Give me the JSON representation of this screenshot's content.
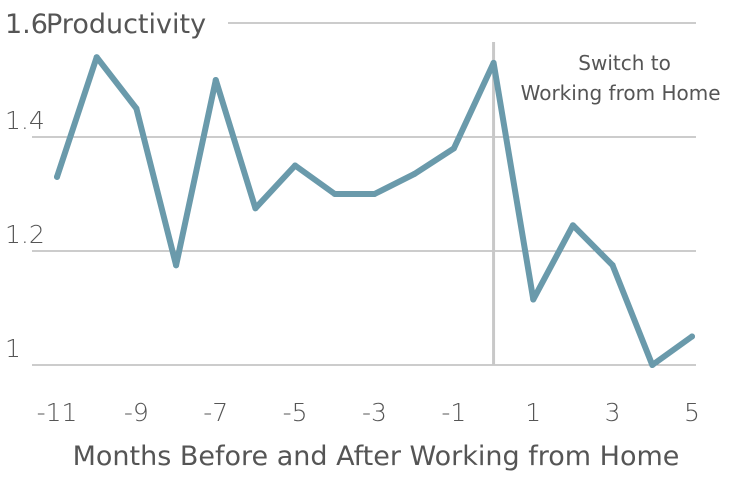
{
  "chart_data": {
    "type": "line",
    "title": "",
    "ylabel": "Productivity",
    "xlabel": "Months Before and After Working from Home",
    "x": [
      -11,
      -10,
      -9,
      -8,
      -7,
      -6,
      -5,
      -4,
      -3,
      -2,
      -1,
      0,
      1,
      2,
      3,
      4,
      5
    ],
    "series": [
      {
        "values": [
          1.33,
          1.54,
          1.45,
          1.175,
          1.5,
          1.275,
          1.35,
          1.3,
          1.3,
          1.335,
          1.38,
          1.53,
          1.115,
          1.245,
          1.175,
          1.0,
          1.05
        ]
      }
    ],
    "xlim": [
      -11,
      5
    ],
    "ylim": [
      1.0,
      1.6
    ],
    "x_ticks": [
      "-11",
      "-9",
      "-7",
      "-5",
      "-3",
      "-1",
      "1",
      "3",
      "5"
    ],
    "x_tick_values": [
      -11,
      -9,
      -7,
      -5,
      -3,
      -1,
      1,
      3,
      5
    ],
    "y_ticks": [
      "1",
      "1.2",
      "1.4",
      "1.6"
    ],
    "y_tick_values": [
      1.0,
      1.2,
      1.4,
      1.6
    ],
    "grid": "horizontal",
    "line_color": "#6a9aab",
    "vline": {
      "x": 0,
      "color": "#c8c8c8"
    },
    "annotation": {
      "line1": "Switch to",
      "line2": "Working from Home",
      "x": 0
    }
  }
}
